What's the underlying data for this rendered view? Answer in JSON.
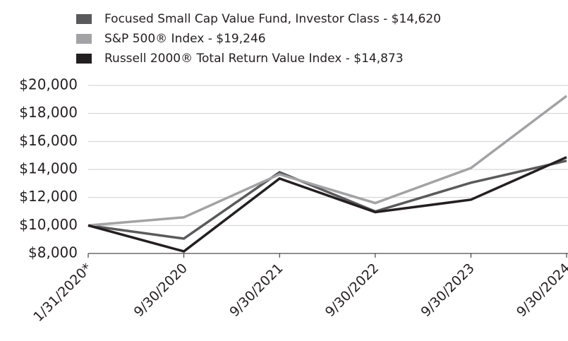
{
  "chart_data": {
    "type": "line",
    "categories": [
      "1/31/2020*",
      "9/30/2020",
      "9/30/2021",
      "9/30/2022",
      "9/30/2023",
      "9/30/2024"
    ],
    "series": [
      {
        "name": "Focused Small Cap Value Fund, Investor Class - $14,620",
        "color": "#5a5a5c",
        "values": [
          10000,
          9060,
          13800,
          11000,
          13050,
          14620
        ]
      },
      {
        "name": "S&P 500® Index - $19,246",
        "color": "#a3a3a5",
        "values": [
          10000,
          10580,
          13650,
          11600,
          14100,
          19246
        ]
      },
      {
        "name": "Russell 2000® Total Return Value Index - $14,873",
        "color": "#231f20",
        "values": [
          10000,
          8150,
          13350,
          10950,
          11840,
          14873
        ]
      }
    ],
    "ylim": [
      8000,
      20000
    ],
    "yticks": [
      {
        "value": 8000,
        "label": "$8,000"
      },
      {
        "value": 10000,
        "label": "$10,000"
      },
      {
        "value": 12000,
        "label": "$12,000"
      },
      {
        "value": 14000,
        "label": "$14,000"
      },
      {
        "value": 16000,
        "label": "$16,000"
      },
      {
        "value": 18000,
        "label": "$18,000"
      },
      {
        "value": 20000,
        "label": "$20,000"
      }
    ],
    "grid": true
  }
}
